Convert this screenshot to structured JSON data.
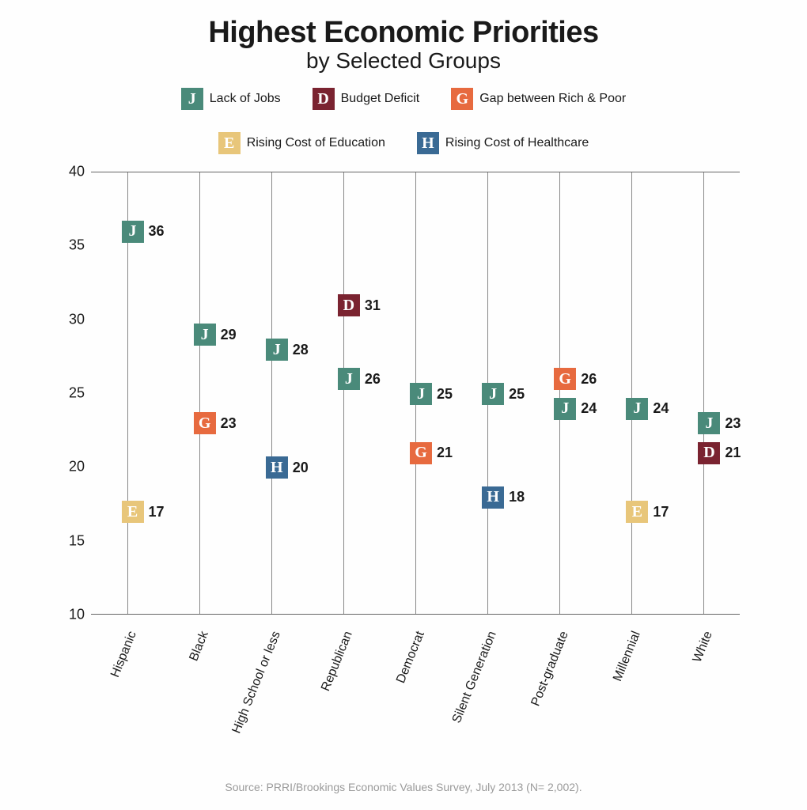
{
  "title": "Highest Economic Priorities",
  "subtitle": "by Selected Groups",
  "source": "Source: PRRI/Brookings Economic Values Survey, July 2013 (N= 2,002).",
  "legend_items": [
    {
      "letter": "J",
      "label": "Lack of Jobs",
      "bg": "#4a8a7a"
    },
    {
      "letter": "D",
      "label": "Budget Deficit",
      "bg": "#7a2330"
    },
    {
      "letter": "G",
      "label": "Gap between Rich & Poor",
      "bg": "#e76a3f"
    },
    {
      "letter": "E",
      "label": "Rising Cost of Education",
      "bg": "#e8c67a"
    },
    {
      "letter": "H",
      "label": "Rising Cost of Healthcare",
      "bg": "#3a6a94"
    }
  ],
  "chart": {
    "type": "categorical-scatter",
    "ylim": [
      10,
      40
    ],
    "yticks": [
      10,
      15,
      20,
      25,
      30,
      35,
      40
    ],
    "categories": [
      "Hispanic",
      "Black",
      "High School or less",
      "Republican",
      "Democrat",
      "Silent Generation",
      "Post-graduate",
      "Millennial",
      "White"
    ],
    "marker_size": 28,
    "marker_font_family": "Georgia, 'Times New Roman', serif",
    "value_fontsize": 18,
    "tick_fontsize": 18,
    "xtick_fontsize": 16,
    "xtick_rotation": -68,
    "grid_color": "#888888",
    "border_color": "#666666",
    "background_color": "#fefefe",
    "data": [
      {
        "category": 0,
        "letter": "J",
        "value": 36,
        "bg": "#4a8a7a"
      },
      {
        "category": 0,
        "letter": "E",
        "value": 17,
        "bg": "#e8c67a"
      },
      {
        "category": 1,
        "letter": "J",
        "value": 29,
        "bg": "#4a8a7a"
      },
      {
        "category": 1,
        "letter": "G",
        "value": 23,
        "bg": "#e76a3f"
      },
      {
        "category": 2,
        "letter": "J",
        "value": 28,
        "bg": "#4a8a7a"
      },
      {
        "category": 2,
        "letter": "H",
        "value": 20,
        "bg": "#3a6a94"
      },
      {
        "category": 3,
        "letter": "D",
        "value": 31,
        "bg": "#7a2330"
      },
      {
        "category": 3,
        "letter": "J",
        "value": 26,
        "bg": "#4a8a7a"
      },
      {
        "category": 4,
        "letter": "J",
        "value": 25,
        "bg": "#4a8a7a"
      },
      {
        "category": 4,
        "letter": "G",
        "value": 21,
        "bg": "#e76a3f"
      },
      {
        "category": 5,
        "letter": "J",
        "value": 25,
        "bg": "#4a8a7a"
      },
      {
        "category": 5,
        "letter": "H",
        "value": 18,
        "bg": "#3a6a94"
      },
      {
        "category": 6,
        "letter": "G",
        "value": 26,
        "bg": "#e76a3f"
      },
      {
        "category": 6,
        "letter": "J",
        "value": 24,
        "bg": "#4a8a7a"
      },
      {
        "category": 7,
        "letter": "J",
        "value": 24,
        "bg": "#4a8a7a"
      },
      {
        "category": 7,
        "letter": "E",
        "value": 17,
        "bg": "#e8c67a"
      },
      {
        "category": 8,
        "letter": "J",
        "value": 23,
        "bg": "#4a8a7a"
      },
      {
        "category": 8,
        "letter": "D",
        "value": 21,
        "bg": "#7a2330"
      }
    ]
  }
}
